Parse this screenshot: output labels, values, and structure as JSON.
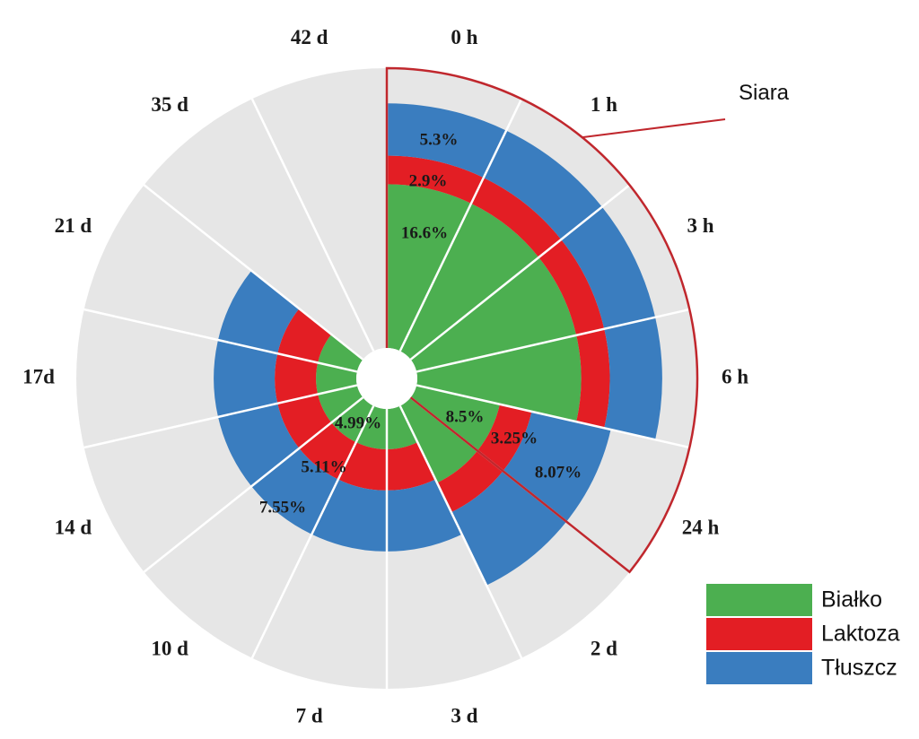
{
  "chart_data": {
    "type": "radial_stacked_bar",
    "categories": [
      "0 h",
      "1 h",
      "3 h",
      "6 h",
      "24 h",
      "2 d",
      "3 d",
      "7 d",
      "10 d",
      "14 d",
      "17d",
      "21 d",
      "35 d",
      "42 d"
    ],
    "series": [
      {
        "name": "Białko",
        "color": "#4caf50",
        "values": [
          16.6,
          16.6,
          16.6,
          16.6,
          8.5,
          8.5,
          4.99,
          4.99,
          4.99,
          4.99,
          4.99,
          4.99,
          null,
          null
        ]
      },
      {
        "name": "Laktoza",
        "color": "#e31e24",
        "values": [
          2.9,
          2.9,
          2.9,
          2.9,
          3.25,
          3.25,
          5.11,
          5.11,
          5.11,
          5.11,
          5.11,
          5.11,
          null,
          null
        ]
      },
      {
        "name": "Tłuszcz",
        "color": "#3a7dbf",
        "values": [
          5.3,
          5.3,
          5.3,
          5.3,
          8.07,
          8.07,
          7.55,
          7.55,
          7.55,
          7.55,
          7.55,
          7.55,
          null,
          null
        ]
      }
    ],
    "data_labels": [
      {
        "text": "16.6%",
        "series": "Białko",
        "category": "0 h"
      },
      {
        "text": "2.9%",
        "series": "Laktoza",
        "category": "0 h"
      },
      {
        "text": "5.3%",
        "series": "Tłuszcz",
        "category": "0 h"
      },
      {
        "text": "8.5%",
        "series": "Białko",
        "category": "24 h"
      },
      {
        "text": "3.25%",
        "series": "Laktoza",
        "category": "24 h"
      },
      {
        "text": "8.07%",
        "series": "Tłuszcz",
        "category": "24 h"
      },
      {
        "text": "4.99%",
        "series": "Białko",
        "category": "7 d"
      },
      {
        "text": "5.11%",
        "series": "Laktoza",
        "category": "7 d"
      },
      {
        "text": "7.55%",
        "series": "Tłuszcz",
        "category": "7 d"
      }
    ],
    "annotation": {
      "text": "Siara",
      "span": [
        "0 h",
        "24 h"
      ]
    },
    "legend": {
      "position": "bottom-right",
      "entries": [
        "Białko",
        "Laktoza",
        "Tłuszcz"
      ]
    },
    "title": "",
    "background_color": "#e6e6e6"
  }
}
